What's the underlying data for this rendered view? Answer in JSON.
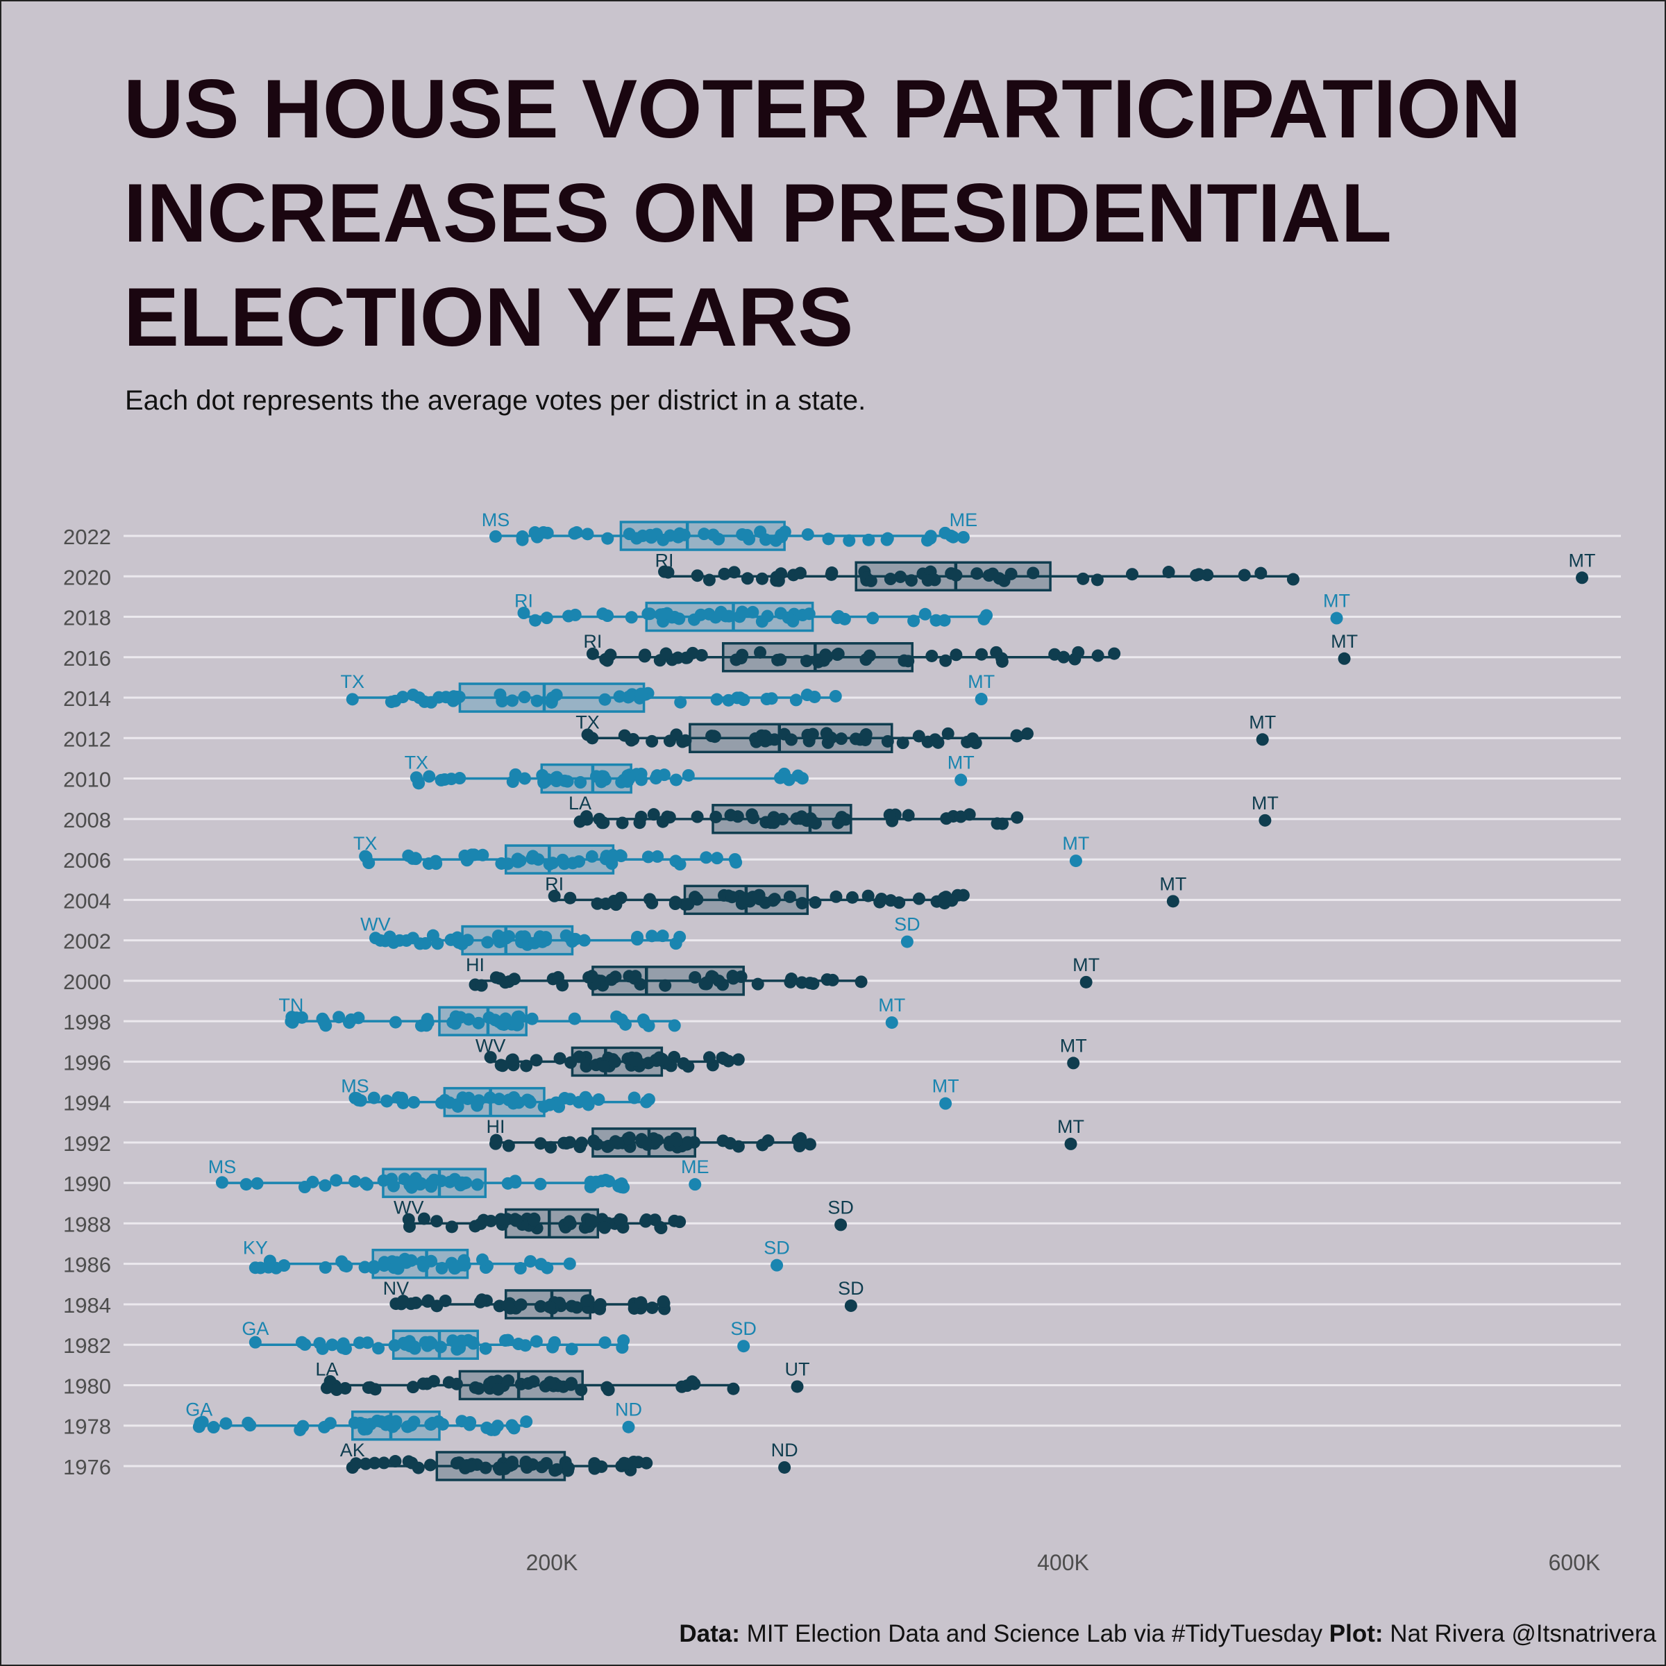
{
  "title": "US HOUSE VOTER PARTICIPATION INCREASES ON PRESIDENTIAL ELECTION YEARS",
  "subtitle": "Each dot represents the average votes per district in a state.",
  "caption": {
    "data_label": "Data:",
    "data_text": " MIT Election Data and Science Lab via #TidyTuesday ",
    "plot_label": "Plot:",
    "plot_text": " Nat Rivera @Itsnatrivera"
  },
  "colors": {
    "background": "#c9c4cd",
    "presidential": "#0f3d4f",
    "midterm": "#1a85b0",
    "gridline": "#ece9ee",
    "title": "#1a0610"
  },
  "chart_data": {
    "type": "boxplot-strip",
    "x_ticks": [
      200000,
      400000,
      600000
    ],
    "x_tick_labels": [
      "200K",
      "400K",
      "600K"
    ],
    "xlim": [
      30000,
      618000
    ],
    "grid": true,
    "series": [
      {
        "year": 2022,
        "presidential": false,
        "min": 178000,
        "q1": 227000,
        "median": 253000,
        "q3": 291000,
        "max": 357000,
        "low_label": "MS",
        "high_label": "ME",
        "high_value": 361000
      },
      {
        "year": 2020,
        "presidential": true,
        "min": 244000,
        "q1": 319000,
        "median": 358000,
        "q3": 395000,
        "max": 490000,
        "low_label": "RI",
        "high_label": "MT",
        "high_value": 603000
      },
      {
        "year": 2018,
        "presidential": false,
        "min": 189000,
        "q1": 237000,
        "median": 271000,
        "q3": 302000,
        "max": 370000,
        "low_label": "RI",
        "high_label": "MT",
        "high_value": 507000
      },
      {
        "year": 2016,
        "presidential": true,
        "min": 216000,
        "q1": 267000,
        "median": 303000,
        "q3": 341000,
        "max": 420000,
        "low_label": "RI",
        "high_label": "MT",
        "high_value": 510000
      },
      {
        "year": 2014,
        "presidential": false,
        "min": 122000,
        "q1": 164000,
        "median": 197000,
        "q3": 236000,
        "max": 311000,
        "low_label": "TX",
        "high_label": "MT",
        "high_value": 368000
      },
      {
        "year": 2012,
        "presidential": true,
        "min": 214000,
        "q1": 254000,
        "median": 289000,
        "q3": 333000,
        "max": 386000,
        "low_label": "TX",
        "high_label": "MT",
        "high_value": 478000
      },
      {
        "year": 2010,
        "presidential": false,
        "min": 147000,
        "q1": 196000,
        "median": 216000,
        "q3": 231000,
        "max": 298000,
        "low_label": "TX",
        "high_label": "MT",
        "high_value": 360000
      },
      {
        "year": 2008,
        "presidential": true,
        "min": 211000,
        "q1": 263000,
        "median": 301000,
        "q3": 317000,
        "max": 382000,
        "low_label": "LA",
        "high_label": "MT",
        "high_value": 479000
      },
      {
        "year": 2006,
        "presidential": false,
        "min": 127000,
        "q1": 182000,
        "median": 199000,
        "q3": 224000,
        "max": 272000,
        "low_label": "TX",
        "high_label": "MT",
        "high_value": 405000
      },
      {
        "year": 2004,
        "presidential": true,
        "min": 201000,
        "q1": 252000,
        "median": 276000,
        "q3": 300000,
        "max": 361000,
        "low_label": "RI",
        "high_label": "MT",
        "high_value": 443000
      },
      {
        "year": 2002,
        "presidential": false,
        "min": 131000,
        "q1": 165000,
        "median": 182000,
        "q3": 208000,
        "max": 250000,
        "low_label": "WV",
        "high_label": "SD",
        "high_value": 339000
      },
      {
        "year": 2000,
        "presidential": true,
        "min": 170000,
        "q1": 216000,
        "median": 237000,
        "q3": 275000,
        "max": 321000,
        "low_label": "HI",
        "high_label": "MT",
        "high_value": 409000
      },
      {
        "year": 1998,
        "presidential": false,
        "min": 98000,
        "q1": 156000,
        "median": 175000,
        "q3": 190000,
        "max": 248000,
        "low_label": "TN",
        "high_label": "MT",
        "high_value": 333000
      },
      {
        "year": 1996,
        "presidential": true,
        "min": 176000,
        "q1": 208000,
        "median": 221000,
        "q3": 243000,
        "max": 273000,
        "low_label": "WV",
        "high_label": "MT",
        "high_value": 404000
      },
      {
        "year": 1994,
        "presidential": false,
        "min": 123000,
        "q1": 158000,
        "median": 176000,
        "q3": 197000,
        "max": 238000,
        "low_label": "MS",
        "high_label": "MT",
        "high_value": 354000
      },
      {
        "year": 1992,
        "presidential": true,
        "min": 178000,
        "q1": 216000,
        "median": 238000,
        "q3": 256000,
        "max": 301000,
        "low_label": "HI",
        "high_label": "MT",
        "high_value": 403000
      },
      {
        "year": 1990,
        "presidential": false,
        "min": 71000,
        "q1": 134000,
        "median": 156000,
        "q3": 174000,
        "max": 228000,
        "low_label": "MS",
        "high_label": "ME",
        "high_value": 256000
      },
      {
        "year": 1988,
        "presidential": true,
        "min": 144000,
        "q1": 182000,
        "median": 199000,
        "q3": 218000,
        "max": 250000,
        "low_label": "WV",
        "high_label": "SD",
        "high_value": 313000
      },
      {
        "year": 1986,
        "presidential": false,
        "min": 84000,
        "q1": 130000,
        "median": 151000,
        "q3": 167000,
        "max": 207000,
        "low_label": "KY",
        "high_label": "SD",
        "high_value": 288000
      },
      {
        "year": 1984,
        "presidential": true,
        "min": 139000,
        "q1": 182000,
        "median": 200000,
        "q3": 215000,
        "max": 244000,
        "low_label": "NV",
        "high_label": "SD",
        "high_value": 317000
      },
      {
        "year": 1982,
        "presidential": false,
        "min": 84000,
        "q1": 138000,
        "median": 156000,
        "q3": 171000,
        "max": 228000,
        "low_label": "GA",
        "high_label": "SD",
        "high_value": 275000
      },
      {
        "year": 1980,
        "presidential": true,
        "min": 112000,
        "q1": 164000,
        "median": 187000,
        "q3": 212000,
        "max": 271000,
        "low_label": "LA",
        "high_label": "UT",
        "high_value": 296000
      },
      {
        "year": 1978,
        "presidential": false,
        "min": 62000,
        "q1": 122000,
        "median": 137000,
        "q3": 156000,
        "max": 190000,
        "low_label": "GA",
        "high_label": "ND",
        "high_value": 230000
      },
      {
        "year": 1976,
        "presidential": true,
        "min": 122000,
        "q1": 155000,
        "median": 181000,
        "q3": 205000,
        "max": 237000,
        "low_label": "AK",
        "high_label": "ND",
        "high_value": 291000
      }
    ]
  }
}
